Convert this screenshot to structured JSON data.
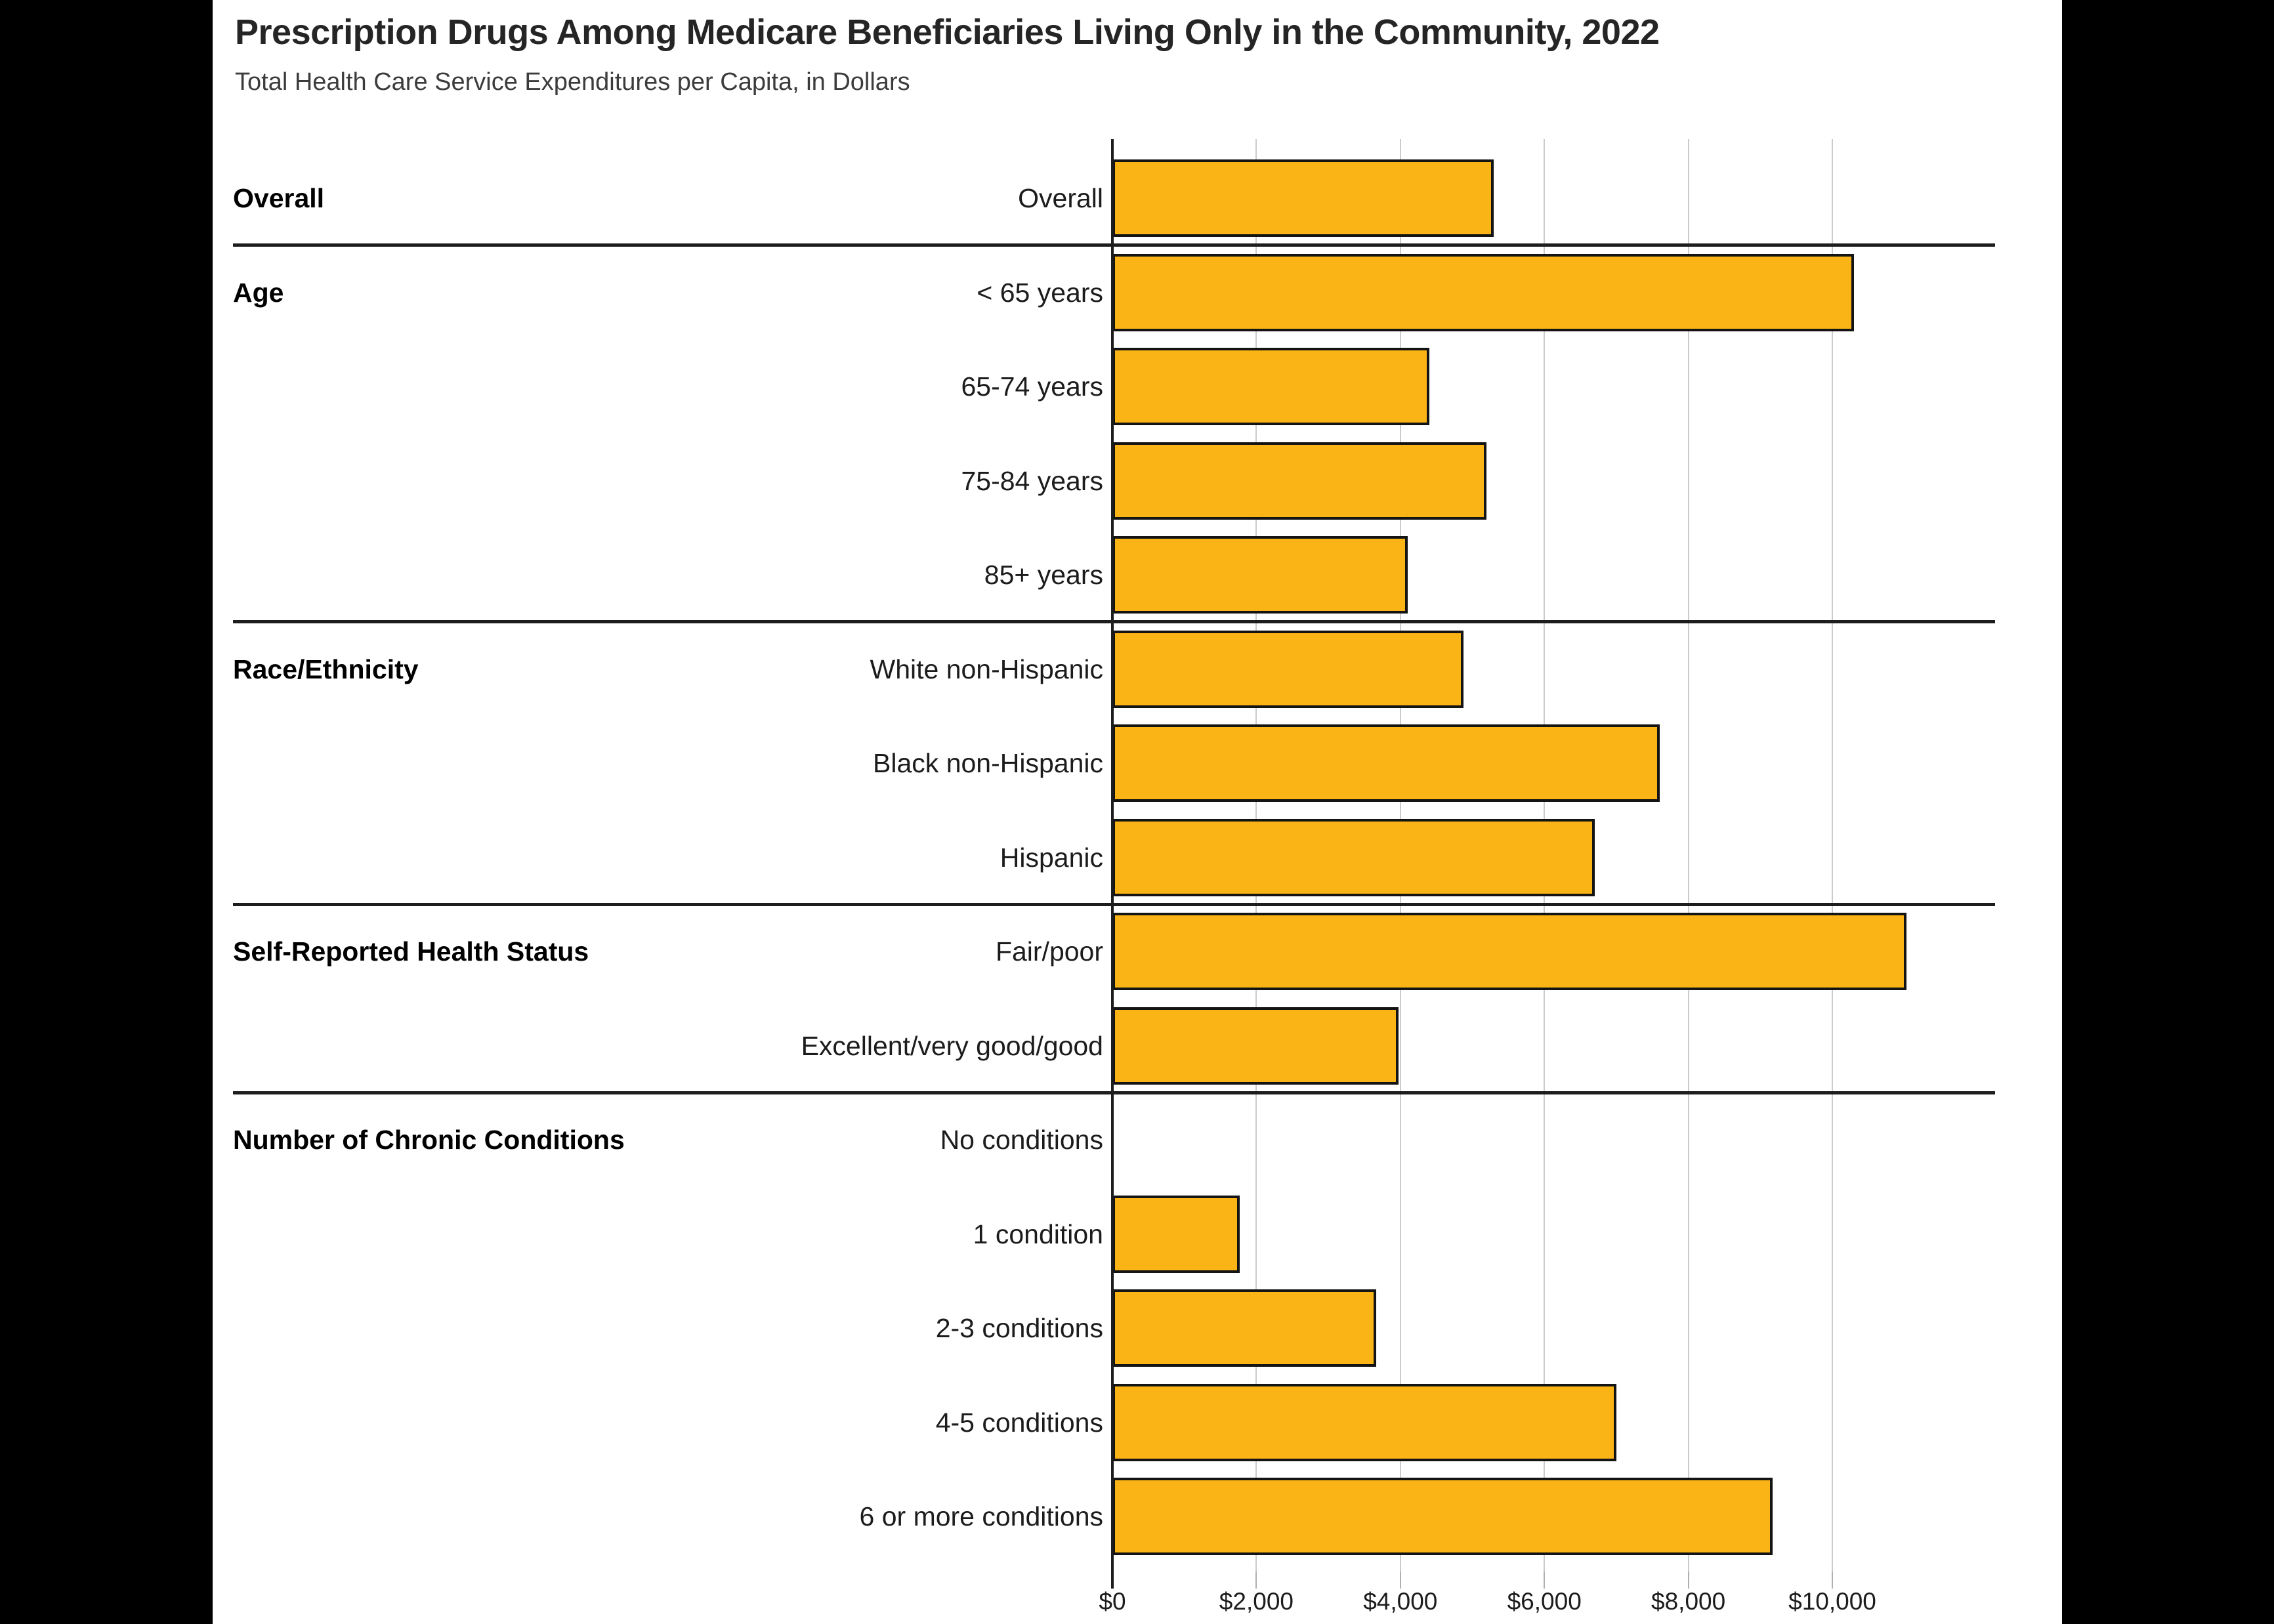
{
  "page": {
    "title": "Prescription Drugs Among Medicare Beneficiaries Living Only in the Community, 2022",
    "subtitle": "Total Health Care Service Expenditures per Capita, in Dollars"
  },
  "chart_data": {
    "type": "bar",
    "orientation": "horizontal",
    "title": "Prescription Drugs Among Medicare Beneficiaries Living Only in the Community, 2022",
    "subtitle": "Total Health Care Service Expenditures per Capita, in Dollars",
    "unit": "dollars per capita",
    "xlim": [
      0,
      12000
    ],
    "grid": true,
    "legend": "none",
    "bar_color": "#FBB416",
    "bar_border_color": "#141414",
    "x_ticks": [
      {
        "label": "$0",
        "value": 0
      },
      {
        "label": "$2,000",
        "value": 2000
      },
      {
        "label": "$4,000",
        "value": 4000
      },
      {
        "label": "$6,000",
        "value": 6000
      },
      {
        "label": "$8,000",
        "value": 8000
      },
      {
        "label": "$10,000",
        "value": 10000
      }
    ],
    "groups": [
      {
        "label": "Overall",
        "rows": [
          {
            "label": "Overall",
            "value": 5300
          }
        ]
      },
      {
        "label": "Age",
        "rows": [
          {
            "label": "< 65 years",
            "value": 10300
          },
          {
            "label": "65-74 years",
            "value": 4400
          },
          {
            "label": "75-84 years",
            "value": 5200
          },
          {
            "label": "85+ years",
            "value": 4100
          }
        ]
      },
      {
        "label": "Race/Ethnicity",
        "rows": [
          {
            "label": "White non-Hispanic",
            "value": 4880
          },
          {
            "label": "Black non-Hispanic",
            "value": 7600
          },
          {
            "label": "Hispanic",
            "value": 6700
          }
        ]
      },
      {
        "label": "Self-Reported Health Status",
        "rows": [
          {
            "label": "Fair/poor",
            "value": 11030
          },
          {
            "label": "Excellent/very good/good",
            "value": 3970
          }
        ]
      },
      {
        "label": "Number of Chronic Conditions",
        "rows": [
          {
            "label": "No conditions",
            "value": 0
          },
          {
            "label": "1 condition",
            "value": 1770
          },
          {
            "label": "2-3 conditions",
            "value": 3660
          },
          {
            "label": "4-5 conditions",
            "value": 7000
          },
          {
            "label": "6 or more conditions",
            "value": 9170
          }
        ]
      }
    ]
  }
}
